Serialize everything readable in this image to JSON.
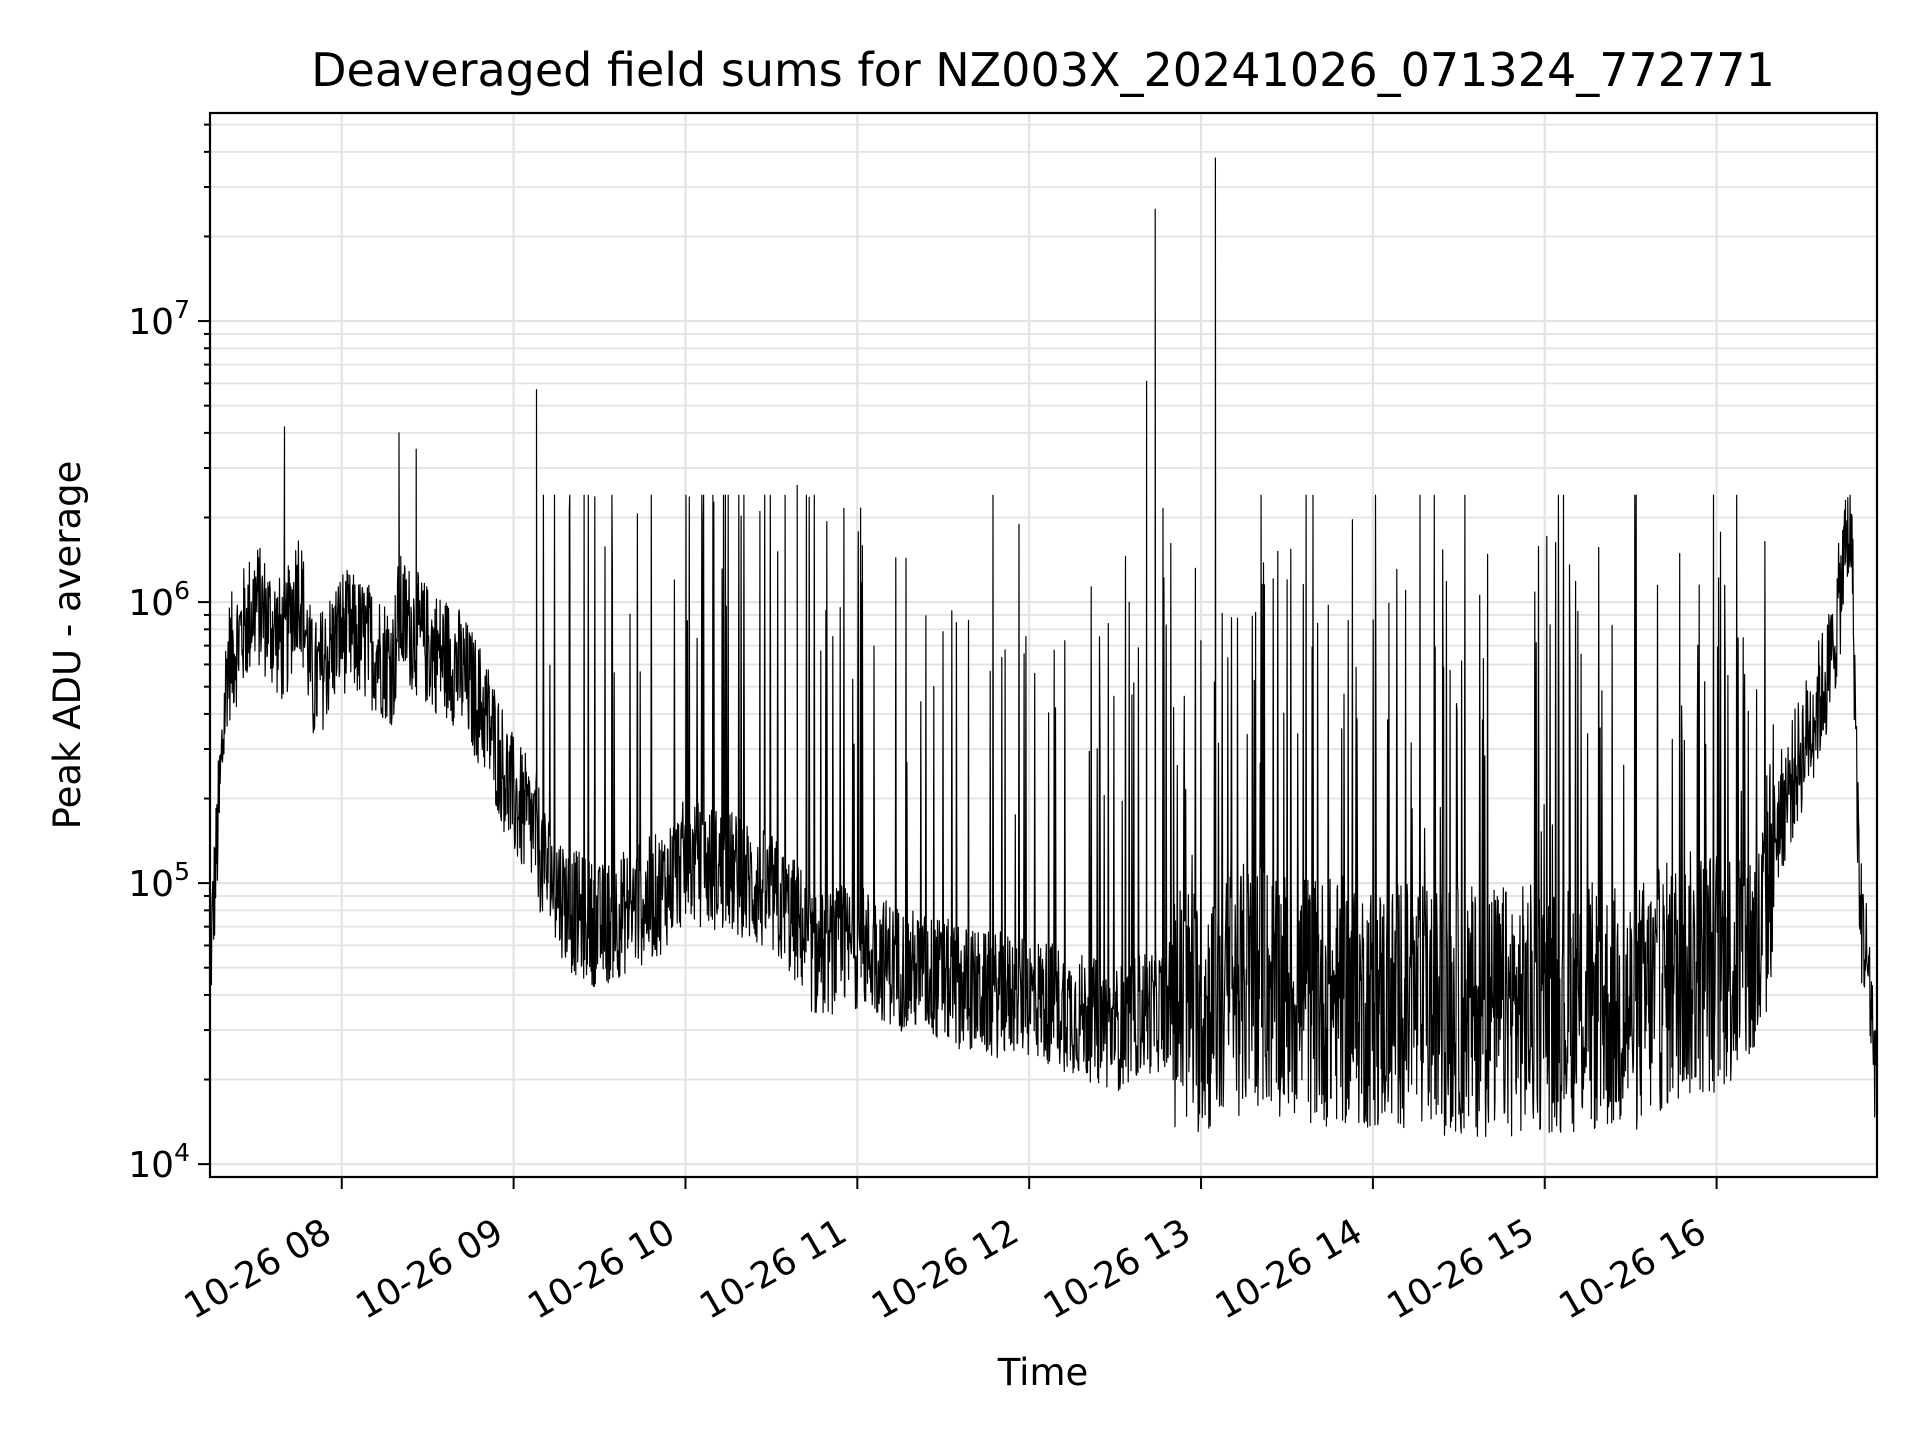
{
  "chart_data": {
    "type": "line",
    "title": "Deaveraged field sums for NZ003X_20241026_071324_772771",
    "xlabel": "Time",
    "ylabel": "Peak ADU - average",
    "yscale": "log",
    "ylim": [
      9000,
      55000000
    ],
    "xlim": [
      "2024-10-26 07:14",
      "2024-10-26 16:56"
    ],
    "grid": true,
    "legend": "none",
    "x_ticks": [
      "10-26 08",
      "10-26 09",
      "10-26 10",
      "10-26 11",
      "10-26 12",
      "10-26 13",
      "10-26 14",
      "10-26 15",
      "10-26 16"
    ],
    "x_tick_values": [
      "2024-10-26 08:00",
      "2024-10-26 09:00",
      "2024-10-26 10:00",
      "2024-10-26 11:00",
      "2024-10-26 12:00",
      "2024-10-26 13:00",
      "2024-10-26 14:00",
      "2024-10-26 15:00",
      "2024-10-26 16:00"
    ],
    "y_ticks": [
      {
        "base": "10",
        "exp": "4",
        "value": 10000
      },
      {
        "base": "10",
        "exp": "5",
        "value": 100000
      },
      {
        "base": "10",
        "exp": "6",
        "value": 1000000
      },
      {
        "base": "10",
        "exp": "7",
        "value": 10000000
      }
    ],
    "series": [
      {
        "color": "#000000",
        "x": [
          "2024-10-26 07:14",
          "2024-10-26 07:20",
          "2024-10-26 07:30",
          "2024-10-26 07:40",
          "2024-10-26 07:45",
          "2024-10-26 07:50",
          "2024-10-26 08:00",
          "2024-10-26 08:10",
          "2024-10-26 08:18",
          "2024-10-26 08:20",
          "2024-10-26 08:30",
          "2024-10-26 08:40",
          "2024-10-26 08:50",
          "2024-10-26 09:00",
          "2024-10-26 09:08",
          "2024-10-26 09:10",
          "2024-10-26 09:20",
          "2024-10-26 09:30",
          "2024-10-26 09:40",
          "2024-10-26 09:50",
          "2024-10-26 10:00",
          "2024-10-26 10:15",
          "2024-10-26 10:30",
          "2024-10-26 10:40",
          "2024-10-26 10:45",
          "2024-10-26 11:00",
          "2024-10-26 11:15",
          "2024-10-26 11:30",
          "2024-10-26 11:45",
          "2024-10-26 12:00",
          "2024-10-26 12:15",
          "2024-10-26 12:30",
          "2024-10-26 12:40",
          "2024-10-26 12:44",
          "2024-10-26 12:50",
          "2024-10-26 13:00",
          "2024-10-26 13:05",
          "2024-10-26 13:10",
          "2024-10-26 13:20",
          "2024-10-26 13:30",
          "2024-10-26 13:45",
          "2024-10-26 14:00",
          "2024-10-26 14:15",
          "2024-10-26 14:30",
          "2024-10-26 14:45",
          "2024-10-26 15:00",
          "2024-10-26 15:15",
          "2024-10-26 15:30",
          "2024-10-26 15:45",
          "2024-10-26 16:00",
          "2024-10-26 16:15",
          "2024-10-26 16:20",
          "2024-10-26 16:30",
          "2024-10-26 16:40",
          "2024-10-26 16:45",
          "2024-10-26 16:47",
          "2024-10-26 16:50",
          "2024-10-26 16:53",
          "2024-10-26 16:56"
        ],
        "y": [
          50000,
          600000,
          1000000,
          700000,
          1200000,
          500000,
          800000,
          700000,
          600000,
          900000,
          700000,
          600000,
          400000,
          200000,
          150000,
          120000,
          80000,
          70000,
          80000,
          90000,
          120000,
          110000,
          90000,
          70000,
          55000,
          60000,
          50000,
          45000,
          40000,
          40000,
          35000,
          30000,
          35000,
          35000,
          38000,
          35000,
          36000,
          40000,
          45000,
          40000,
          38000,
          37000,
          36000,
          35000,
          35000,
          36000,
          36000,
          35000,
          45000,
          50000,
          55000,
          150000,
          300000,
          600000,
          1500000,
          2000000,
          80000,
          50000,
          18000
        ],
        "peaks": [
          {
            "x": "2024-10-26 07:40",
            "y": 4200000
          },
          {
            "x": "2024-10-26 08:20",
            "y": 4000000
          },
          {
            "x": "2024-10-26 08:26",
            "y": 3500000
          },
          {
            "x": "2024-10-26 09:08",
            "y": 5700000
          },
          {
            "x": "2024-10-26 10:26",
            "y": 2100000
          },
          {
            "x": "2024-10-26 10:39",
            "y": 2600000
          },
          {
            "x": "2024-10-26 12:41",
            "y": 6100000
          },
          {
            "x": "2024-10-26 12:44",
            "y": 25000000
          },
          {
            "x": "2024-10-26 13:05",
            "y": 38000000
          },
          {
            "x": "2024-10-26 16:45",
            "y": 2300000
          }
        ]
      }
    ]
  }
}
